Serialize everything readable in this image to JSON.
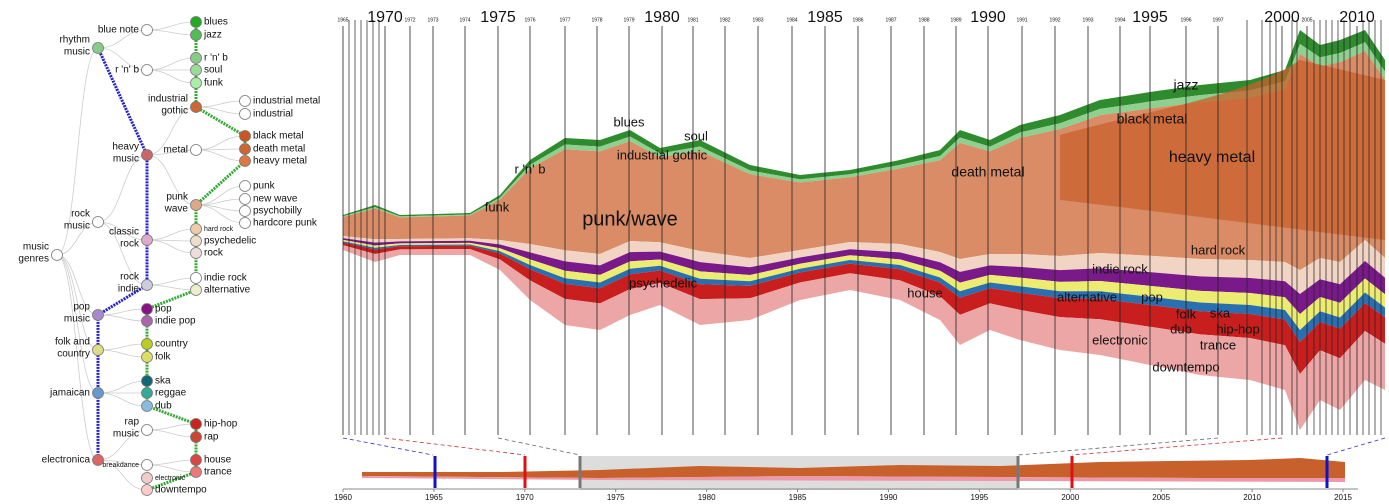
{
  "tree": {
    "nodes": [
      [
        "music",
        "genres"
      ],
      [
        "rhythm",
        "music"
      ],
      [
        "rock",
        "music"
      ],
      [
        "pop",
        "music"
      ],
      [
        "folk and",
        "country"
      ],
      [
        "jamaican"
      ],
      [
        "electronica"
      ],
      [
        "heavy",
        "music"
      ],
      [
        "classic",
        "rock"
      ],
      [
        "rock",
        "indie"
      ],
      [
        "blue note"
      ],
      [
        "r 'n' b"
      ],
      [
        "industrial",
        "gothic"
      ],
      [
        "metal"
      ],
      [
        "punk",
        "wave"
      ],
      [
        "rap",
        "music"
      ],
      [
        "breakdance"
      ],
      [
        "blues"
      ],
      [
        "jazz"
      ],
      [
        "r 'n' b"
      ],
      [
        "soul"
      ],
      [
        "funk"
      ],
      [
        "industrial metal"
      ],
      [
        "industrial"
      ],
      [
        "black metal"
      ],
      [
        "death metal"
      ],
      [
        "heavy metal"
      ],
      [
        "punk"
      ],
      [
        "new wave"
      ],
      [
        "psychobilly"
      ],
      [
        "hardcore punk"
      ],
      [
        "hard rock"
      ],
      [
        "psychedelic"
      ],
      [
        "rock"
      ],
      [
        "indie rock"
      ],
      [
        "alternative"
      ],
      [
        "pop"
      ],
      [
        "indie pop"
      ],
      [
        "country"
      ],
      [
        "folk"
      ],
      [
        "ska"
      ],
      [
        "reggae"
      ],
      [
        "dub"
      ],
      [
        "hip-hop"
      ],
      [
        "rap"
      ],
      [
        "house"
      ],
      [
        "trance"
      ],
      [
        "electronic"
      ],
      [
        "downtempo"
      ]
    ]
  },
  "timeline": {
    "major_years": [
      1970,
      1975,
      1980,
      1985,
      1990,
      1995,
      2000,
      2010
    ],
    "minor_years": [
      1965,
      1972,
      1973,
      1974,
      1976,
      1977,
      1978,
      1979,
      1981,
      1982,
      1983,
      1984,
      1986,
      1987,
      1988,
      1989,
      1991,
      1992,
      1993,
      1994,
      1996,
      1997,
      2005
    ]
  },
  "stream_labels": [
    "funk",
    "r 'n' b",
    "blues",
    "soul",
    "industrial gothic",
    "punk/wave",
    "death metal",
    "black metal",
    "jazz",
    "heavy metal",
    "hard rock",
    "indie rock",
    "psychedelic",
    "house",
    "alternative",
    "pop",
    "folk",
    "ska",
    "dub",
    "hip-hop",
    "electronic",
    "trance",
    "downtempo"
  ],
  "overview_ticks": [
    1960,
    1965,
    1970,
    1975,
    1980,
    1985,
    1990,
    1995,
    2000,
    2005,
    2010,
    2015
  ]
}
